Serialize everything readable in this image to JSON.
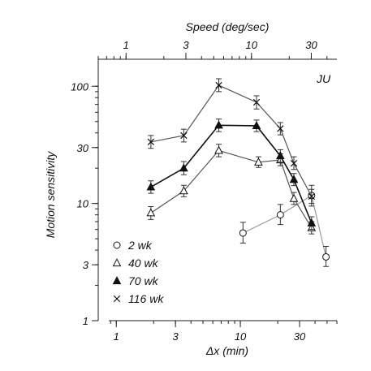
{
  "chart_data": {
    "type": "line",
    "panel_label": "JU",
    "xlabel": "Δx (min)",
    "ylabel": "Motion sensitivity",
    "top_xlabel": "Speed (deg/sec)",
    "x_scale": "log",
    "y_scale": "log",
    "xlim": [
      0.87,
      60
    ],
    "ylim": [
      1,
      170
    ],
    "top_xlim": [
      0.6,
      48
    ],
    "x_ticks": [
      1,
      3,
      10,
      30
    ],
    "x_tick_labels": [
      "1",
      "3",
      "10",
      "30"
    ],
    "y_ticks": [
      1,
      3,
      10,
      30,
      100
    ],
    "y_tick_labels": [
      "1",
      "3",
      "10",
      "30",
      "100"
    ],
    "top_x_ticks": [
      1,
      3,
      10,
      30
    ],
    "top_x_tick_labels": [
      "1",
      "3",
      "10",
      "30"
    ],
    "grid": false,
    "legend_position": "bottom-left",
    "series": [
      {
        "name": "2 wk",
        "marker": "open-circle",
        "line_color": "#999999",
        "points": [
          {
            "x": 10.5,
            "y": 5.6,
            "lo": 4.6,
            "hi": 6.9
          },
          {
            "x": 21,
            "y": 8.0,
            "lo": 6.6,
            "hi": 9.8
          },
          {
            "x": 37.5,
            "y": 11.7,
            "lo": 9.5,
            "hi": 14.3
          },
          {
            "x": 49,
            "y": 3.5,
            "lo": 2.9,
            "hi": 4.3
          }
        ]
      },
      {
        "name": "40 wk",
        "marker": "open-triangle",
        "line_color": "#555555",
        "points": [
          {
            "x": 1.9,
            "y": 8.3,
            "lo": 7.3,
            "hi": 9.4
          },
          {
            "x": 3.5,
            "y": 12.8,
            "lo": 11.4,
            "hi": 14.3
          },
          {
            "x": 6.7,
            "y": 28.3,
            "lo": 25.0,
            "hi": 32.0
          },
          {
            "x": 14,
            "y": 22.5,
            "lo": 20.3,
            "hi": 25.0
          },
          {
            "x": 21,
            "y": 23.5,
            "lo": 21.0,
            "hi": 26.5
          },
          {
            "x": 27,
            "y": 11.0,
            "lo": 9.8,
            "hi": 12.4
          },
          {
            "x": 37.5,
            "y": 6.2,
            "lo": 5.5,
            "hi": 7.0
          }
        ]
      },
      {
        "name": "70 wk",
        "marker": "filled-triangle",
        "line_color": "#111111",
        "points": [
          {
            "x": 1.9,
            "y": 13.8,
            "lo": 12.2,
            "hi": 15.6
          },
          {
            "x": 3.5,
            "y": 20.0,
            "lo": 17.6,
            "hi": 22.8
          },
          {
            "x": 6.7,
            "y": 46.5,
            "lo": 41.0,
            "hi": 52.5
          },
          {
            "x": 13.5,
            "y": 46.0,
            "lo": 41.0,
            "hi": 51.5
          },
          {
            "x": 21,
            "y": 25.5,
            "lo": 22.5,
            "hi": 28.8
          },
          {
            "x": 27,
            "y": 16.0,
            "lo": 14.2,
            "hi": 18.0
          },
          {
            "x": 37.5,
            "y": 6.8,
            "lo": 6.0,
            "hi": 7.7
          }
        ]
      },
      {
        "name": "116 wk",
        "marker": "cross",
        "line_color": "#555555",
        "points": [
          {
            "x": 1.9,
            "y": 33.5,
            "lo": 29.5,
            "hi": 38.0
          },
          {
            "x": 3.5,
            "y": 38.0,
            "lo": 33.5,
            "hi": 43.0
          },
          {
            "x": 6.7,
            "y": 102,
            "lo": 90,
            "hi": 116
          },
          {
            "x": 13.5,
            "y": 73,
            "lo": 64,
            "hi": 83
          },
          {
            "x": 21,
            "y": 43.5,
            "lo": 38.5,
            "hi": 49.0
          },
          {
            "x": 27,
            "y": 22.0,
            "lo": 19.5,
            "hi": 25.0
          },
          {
            "x": 37.5,
            "y": 11.5,
            "lo": 10.0,
            "hi": 13.2
          }
        ]
      }
    ]
  }
}
